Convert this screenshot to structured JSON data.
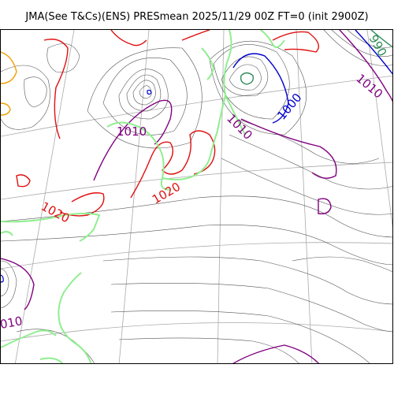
{
  "title": "JMA(See T&Cs)(ENS) PRESmean 2025/11/29 00Z FT=0 (init 2900Z)",
  "colors": {
    "isobar_thin": "#555555",
    "isobar_990": "#2e8b57",
    "isobar_1000": "#0000cd",
    "isobar_1010": "#800080",
    "isobar_1020": "#e01010",
    "isobar_1030": "#f0a000",
    "coastline": "#90ee90",
    "graticule": "#aaaaaa"
  },
  "contour_labels": [
    {
      "id": "label-1010-west",
      "text": "1010",
      "color": "#800080"
    },
    {
      "id": "label-1020-southwest",
      "text": "1020",
      "color": "#e01010"
    },
    {
      "id": "label-1020-center",
      "text": "1020",
      "color": "#e01010"
    },
    {
      "id": "label-1010-center",
      "text": "1010",
      "color": "#800080"
    },
    {
      "id": "label-1000-east",
      "text": "1000",
      "color": "#0000cd"
    },
    {
      "id": "label-990-northeast",
      "text": "990",
      "color": "#2e8b57"
    },
    {
      "id": "label-1010-northeast",
      "text": "1010",
      "color": "#800080"
    },
    {
      "id": "label-1010-southwest-edge",
      "text": "010",
      "color": "#800080"
    }
  ]
}
